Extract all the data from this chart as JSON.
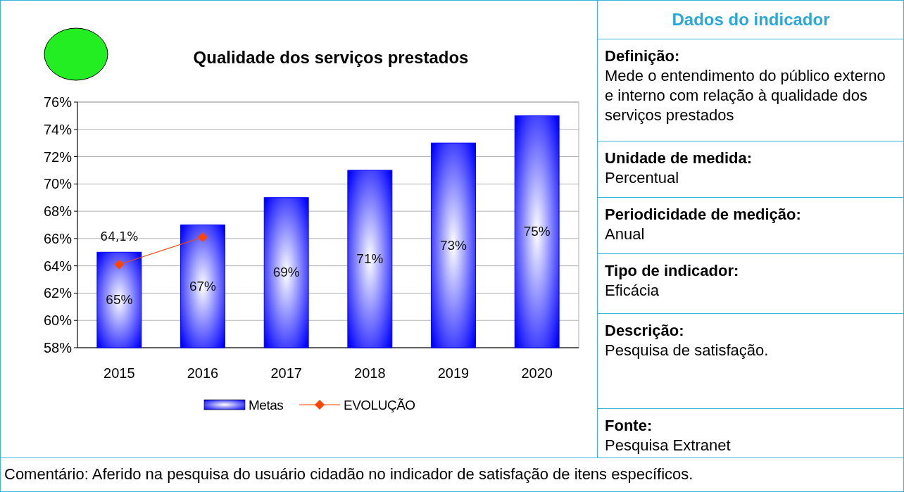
{
  "chart_data": [
    {
      "type": "bar",
      "title": "Qualidade dos serviços prestados",
      "categories": [
        "2015",
        "2016",
        "2017",
        "2018",
        "2019",
        "2020"
      ],
      "series": [
        {
          "name": "Metas",
          "type": "bar",
          "color": "#0000ff",
          "values": [
            65,
            67,
            69,
            71,
            73,
            75
          ],
          "value_labels": [
            "65%",
            "67%",
            "69%",
            "71%",
            "73%",
            "75%"
          ]
        },
        {
          "name": "EVOLUÇÃO",
          "type": "line",
          "color": "#ff4500",
          "values": [
            64.1,
            66.1,
            null,
            null,
            null,
            null
          ],
          "value_labels": [
            "64,1%",
            null,
            null,
            null,
            null,
            null
          ]
        }
      ],
      "ylim": [
        58,
        76
      ],
      "yticks": [
        {
          "value": 58,
          "label": "58%"
        },
        {
          "value": 60,
          "label": "60%"
        },
        {
          "value": 62,
          "label": "62%"
        },
        {
          "value": 64,
          "label": "64%"
        },
        {
          "value": 66,
          "label": "66%"
        },
        {
          "value": 68,
          "label": "68%"
        },
        {
          "value": 70,
          "label": "70%"
        },
        {
          "value": 72,
          "label": "72%"
        },
        {
          "value": 74,
          "label": "74%"
        },
        {
          "value": 76,
          "label": "76%"
        }
      ],
      "grid": "y",
      "legend": "bottom",
      "marker": "diamond",
      "annotations": [
        "Comentário: Aferido na pesquisa do usuário cidadão no indicador de satisfação de itens específicos."
      ]
    },
    {
      "type": "other",
      "title": "Dados do indicador",
      "annotations": [
        "Definição:",
        "Mede o entendimento do público externo e interno com relação à qualidade dos serviços prestados",
        "Unidade de medida:",
        "Percentual",
        "Periodicidade de medição:",
        "Anual",
        "Tipo de indicador:",
        "Eficácia",
        "Descrição:",
        "Pesquisa de satisfação.",
        "Fonte:",
        "Pesquisa Extranet"
      ]
    }
  ]
}
